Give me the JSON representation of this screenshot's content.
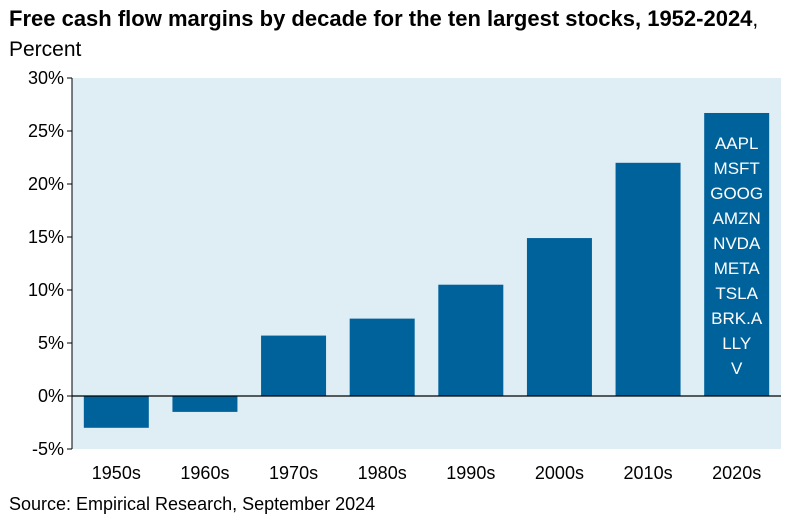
{
  "title": {
    "bold": "Free cash flow margins by decade for the ten largest stocks, 1952-2024",
    "unit": ", Percent"
  },
  "source": "Source: Empirical Research, September 2024",
  "colors": {
    "bar": "#00629b",
    "plot_bg": "#dfeef5",
    "axis": "#000000"
  },
  "chart_data": {
    "type": "bar",
    "title": "Free cash flow margins by decade for the ten largest stocks, 1952-2024",
    "unit": "Percent",
    "categories": [
      "1950s",
      "1960s",
      "1970s",
      "1980s",
      "1990s",
      "2000s",
      "2010s",
      "2020s"
    ],
    "values": [
      -3.0,
      -1.5,
      5.7,
      7.3,
      10.5,
      14.9,
      22.0,
      26.7
    ],
    "ylim": [
      -5,
      30
    ],
    "yticks": [
      -5,
      0,
      5,
      10,
      15,
      20,
      25,
      30
    ],
    "ytick_labels": [
      "-5%",
      "0%",
      "5%",
      "10%",
      "15%",
      "20%",
      "25%",
      "30%"
    ],
    "grid": false,
    "annotations": [
      {
        "category": "2020s",
        "lines": [
          "AAPL",
          "MSFT",
          "GOOG",
          "AMZN",
          "NVDA",
          "META",
          "TSLA",
          "BRK.A",
          "LLY",
          "V"
        ]
      }
    ]
  }
}
